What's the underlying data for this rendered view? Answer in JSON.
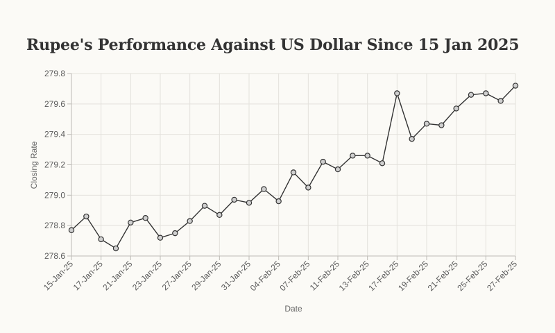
{
  "chart_data": {
    "type": "line",
    "title": "Rupee's Performance Against US Dollar Since 15 Jan 2025",
    "xlabel": "Date",
    "ylabel": "Closing Rate",
    "ylim": [
      278.6,
      279.8
    ],
    "yticks": [
      "279.8",
      "279.6",
      "279.4",
      "279.2",
      "279.0",
      "278.8",
      "278.6"
    ],
    "ytick_values": [
      279.8,
      279.6,
      279.4,
      279.2,
      279.0,
      278.8,
      278.6
    ],
    "grid": true,
    "series": [
      {
        "name": "Closing Rate",
        "color": "#333333",
        "x": [
          "15-Jan-25",
          "16-Jan-25",
          "17-Jan-25",
          "20-Jan-25",
          "21-Jan-25",
          "22-Jan-25",
          "23-Jan-25",
          "24-Jan-25",
          "27-Jan-25",
          "28-Jan-25",
          "29-Jan-25",
          "30-Jan-25",
          "31-Jan-25",
          "03-Feb-25",
          "04-Feb-25",
          "06-Feb-25",
          "07-Feb-25",
          "10-Feb-25",
          "11-Feb-25",
          "12-Feb-25",
          "13-Feb-25",
          "14-Feb-25",
          "17-Feb-25",
          "18-Feb-25",
          "19-Feb-25",
          "20-Feb-25",
          "21-Feb-25",
          "24-Feb-25",
          "25-Feb-25",
          "26-Feb-25",
          "27-Feb-25"
        ],
        "values": [
          278.77,
          278.86,
          278.71,
          278.65,
          278.82,
          278.85,
          278.72,
          278.75,
          278.83,
          278.93,
          278.87,
          278.97,
          278.95,
          279.04,
          278.96,
          279.15,
          279.05,
          279.22,
          279.17,
          279.26,
          279.26,
          279.21,
          279.67,
          279.37,
          279.47,
          279.46,
          279.57,
          279.66,
          279.67,
          279.62,
          279.72
        ]
      }
    ],
    "xtick_labels": [
      "15-Jan-25",
      "17-Jan-25",
      "21-Jan-25",
      "23-Jan-25",
      "27-Jan-25",
      "29-Jan-25",
      "31-Jan-25",
      "04-Feb-25",
      "07-Feb-25",
      "11-Feb-25",
      "13-Feb-25",
      "17-Feb-25",
      "19-Feb-25",
      "21-Feb-25",
      "25-Feb-25",
      "27-Feb-25"
    ],
    "colors": {
      "line": "#333333",
      "marker_fill": "#cfcfcf",
      "grid": "#e3e1dc",
      "axis": "#bdbbb6",
      "background": "#fbfaf6"
    }
  }
}
